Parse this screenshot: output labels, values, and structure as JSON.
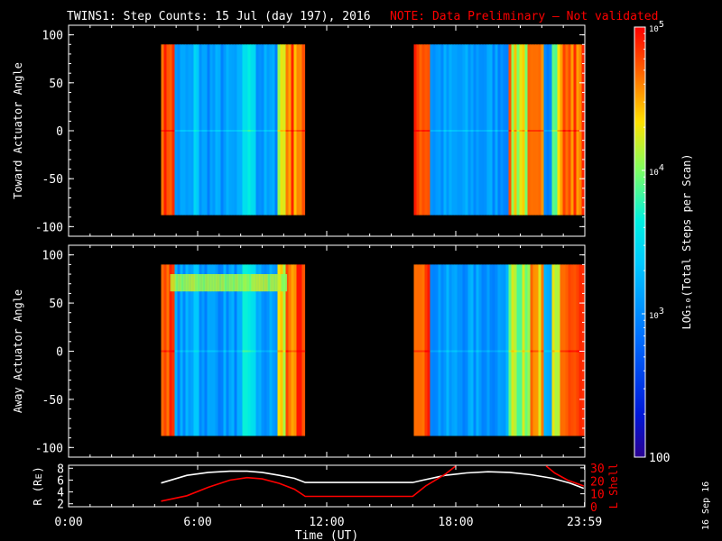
{
  "title": {
    "main": "TWINS1: Step Counts: 15 Jul (day 197), 2016",
    "note": "NOTE: Data Preliminary — Not validated",
    "main_color": "#ffffff",
    "note_color": "#ff0000"
  },
  "side_stamp": "16 Sep 16",
  "chart_data": [
    {
      "type": "heatmap",
      "panel": "toward",
      "ylabel": "Toward Actuator Angle",
      "ylim": [
        -110,
        110
      ],
      "yticks": [
        100,
        50,
        0,
        -50,
        -100
      ],
      "x_unit": "hours UT",
      "xlim": [
        0,
        24
      ],
      "data_blocks": [
        {
          "x": [
            4.3,
            10.95
          ],
          "y": [
            -88,
            90
          ]
        },
        {
          "x": [
            16.05,
            23.95
          ],
          "y": [
            -88,
            90
          ]
        }
      ],
      "scale": "log"
    },
    {
      "type": "heatmap",
      "panel": "away",
      "ylabel": "Away Actuator Angle",
      "ylim": [
        -110,
        110
      ],
      "yticks": [
        100,
        50,
        0,
        -50,
        -100
      ],
      "x_unit": "hours UT",
      "xlim": [
        0,
        24
      ],
      "data_blocks": [
        {
          "x": [
            4.3,
            10.95
          ],
          "y": [
            -88,
            90
          ]
        },
        {
          "x": [
            16.05,
            23.95
          ],
          "y": [
            -88,
            90
          ]
        }
      ],
      "scale": "log"
    },
    {
      "type": "line",
      "panel": "orbit",
      "xlabel": "Time (UT)",
      "xticks": [
        "0:00",
        "6:00",
        "12:00",
        "18:00",
        "23:59"
      ],
      "xtick_hours": [
        0,
        6,
        12,
        18,
        23.983
      ],
      "xlim": [
        0,
        24
      ],
      "left_axis": {
        "label": "R (Rᴇ)",
        "ticks": [
          "8",
          "6",
          "4",
          "2"
        ],
        "ylim": [
          1.5,
          8.5
        ]
      },
      "right_axis": {
        "label": "L Shell",
        "ticks": [
          "30",
          "20",
          "10",
          "0"
        ],
        "ylim": [
          0,
          32
        ],
        "color": "#ff0000"
      },
      "series": [
        {
          "axis": "left",
          "color": "#ffffff",
          "x": [
            4.3,
            5.5,
            6.5,
            7.5,
            8.3,
            9.0,
            9.8,
            10.5,
            11.0,
            12.0,
            13.0,
            14.0,
            15.0,
            16.0,
            16.5,
            17.5,
            18.5,
            19.5,
            20.5,
            21.5,
            22.5,
            23.3,
            23.95
          ],
          "y": [
            5.5,
            6.8,
            7.3,
            7.5,
            7.5,
            7.3,
            6.8,
            6.3,
            5.6,
            5.6,
            5.6,
            5.6,
            5.6,
            5.6,
            6.0,
            6.8,
            7.2,
            7.4,
            7.3,
            6.9,
            6.3,
            5.5,
            4.6
          ]
        },
        {
          "axis": "right",
          "color": "#ff0000",
          "x": [
            4.3,
            5.5,
            6.5,
            7.5,
            8.3,
            9.0,
            9.8,
            10.5,
            11.0,
            16.0,
            16.6,
            17.5,
            18.0
          ],
          "y": [
            4.3,
            8.5,
            15.0,
            20.5,
            22.5,
            21.5,
            18.0,
            13.5,
            8.0,
            8.0,
            16.0,
            25.0,
            31.5
          ]
        },
        {
          "axis": "right",
          "color": "#ff0000",
          "x": [
            22.2,
            22.6,
            23.2,
            23.95
          ],
          "y": [
            31.5,
            26.0,
            20.5,
            16.0
          ]
        }
      ]
    },
    {
      "type": "colorbar",
      "label": "LOG₁₀(Total Steps per Scan)",
      "scale": "log",
      "range": [
        100,
        100000
      ],
      "tick_values": [
        100000,
        10000,
        1000,
        100
      ],
      "tick_labels": [
        {
          "base": "10",
          "exp": "5"
        },
        {
          "base": "10",
          "exp": "4"
        },
        {
          "base": "10",
          "exp": "3"
        },
        {
          "base": "100",
          "exp": ""
        }
      ]
    }
  ]
}
